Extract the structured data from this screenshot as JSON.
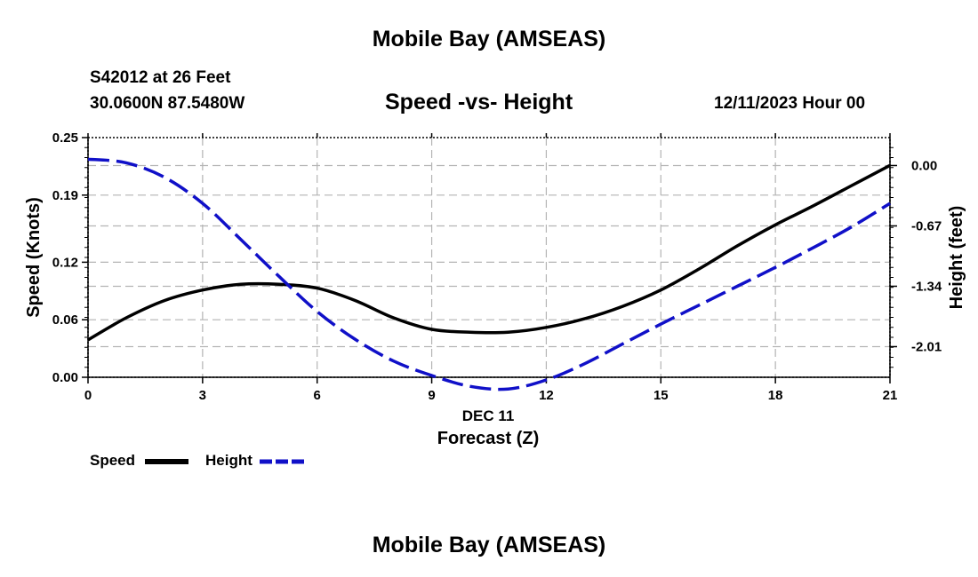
{
  "header": {
    "title": "Mobile Bay (AMSEAS)",
    "station": "S42012 at 26 Feet",
    "coords": "30.0600N  87.5480W",
    "subtitle": "Speed -vs- Height",
    "datetime": "12/11/2023 Hour 00"
  },
  "footer": {
    "title": "Mobile Bay (AMSEAS)"
  },
  "legend": {
    "speed_label": "Speed",
    "height_label": "Height"
  },
  "colors": {
    "speed": "#000000",
    "height": "#1010c8",
    "grid": "#b4b4b4"
  },
  "chart_data": {
    "type": "line",
    "title": "Speed -vs- Height",
    "xlabel": "Forecast (Z)",
    "xdate_label": "DEC 11",
    "ylabel": "Speed (Knots)",
    "y2label": "Height (feet)",
    "xlim": [
      0,
      21
    ],
    "ylim": [
      0,
      0.25
    ],
    "y2lim": [
      -2.35,
      0.31
    ],
    "xticks": [
      "0",
      "3",
      "6",
      "9",
      "12",
      "15",
      "18",
      "21"
    ],
    "yticks": [
      "0.00",
      "0.06",
      "0.12",
      "0.19",
      "0.25"
    ],
    "y2ticks": [
      "0.00",
      "-0.67",
      "-1.34",
      "-2.01"
    ],
    "grid": true,
    "series": [
      {
        "name": "Speed",
        "axis": "left",
        "style": "solid",
        "x": [
          0,
          1,
          2,
          3,
          4,
          5,
          6,
          7,
          8,
          9,
          10,
          11,
          12,
          13,
          14,
          15,
          16,
          17,
          18,
          19,
          20,
          21
        ],
        "values": [
          0.039,
          0.062,
          0.08,
          0.091,
          0.097,
          0.097,
          0.093,
          0.08,
          0.062,
          0.05,
          0.047,
          0.047,
          0.052,
          0.061,
          0.074,
          0.091,
          0.113,
          0.137,
          0.159,
          0.179,
          0.2,
          0.221
        ]
      },
      {
        "name": "Height",
        "axis": "right",
        "style": "dashed",
        "x": [
          0,
          1,
          2,
          3,
          4,
          5,
          6,
          7,
          8,
          9,
          10,
          11,
          12,
          13,
          14,
          15,
          16,
          17,
          18,
          19,
          20,
          21
        ],
        "values": [
          0.07,
          0.03,
          -0.13,
          -0.42,
          -0.82,
          -1.23,
          -1.62,
          -1.93,
          -2.17,
          -2.33,
          -2.45,
          -2.48,
          -2.38,
          -2.2,
          -1.98,
          -1.76,
          -1.55,
          -1.34,
          -1.13,
          -0.91,
          -0.68,
          -0.42
        ]
      }
    ]
  }
}
